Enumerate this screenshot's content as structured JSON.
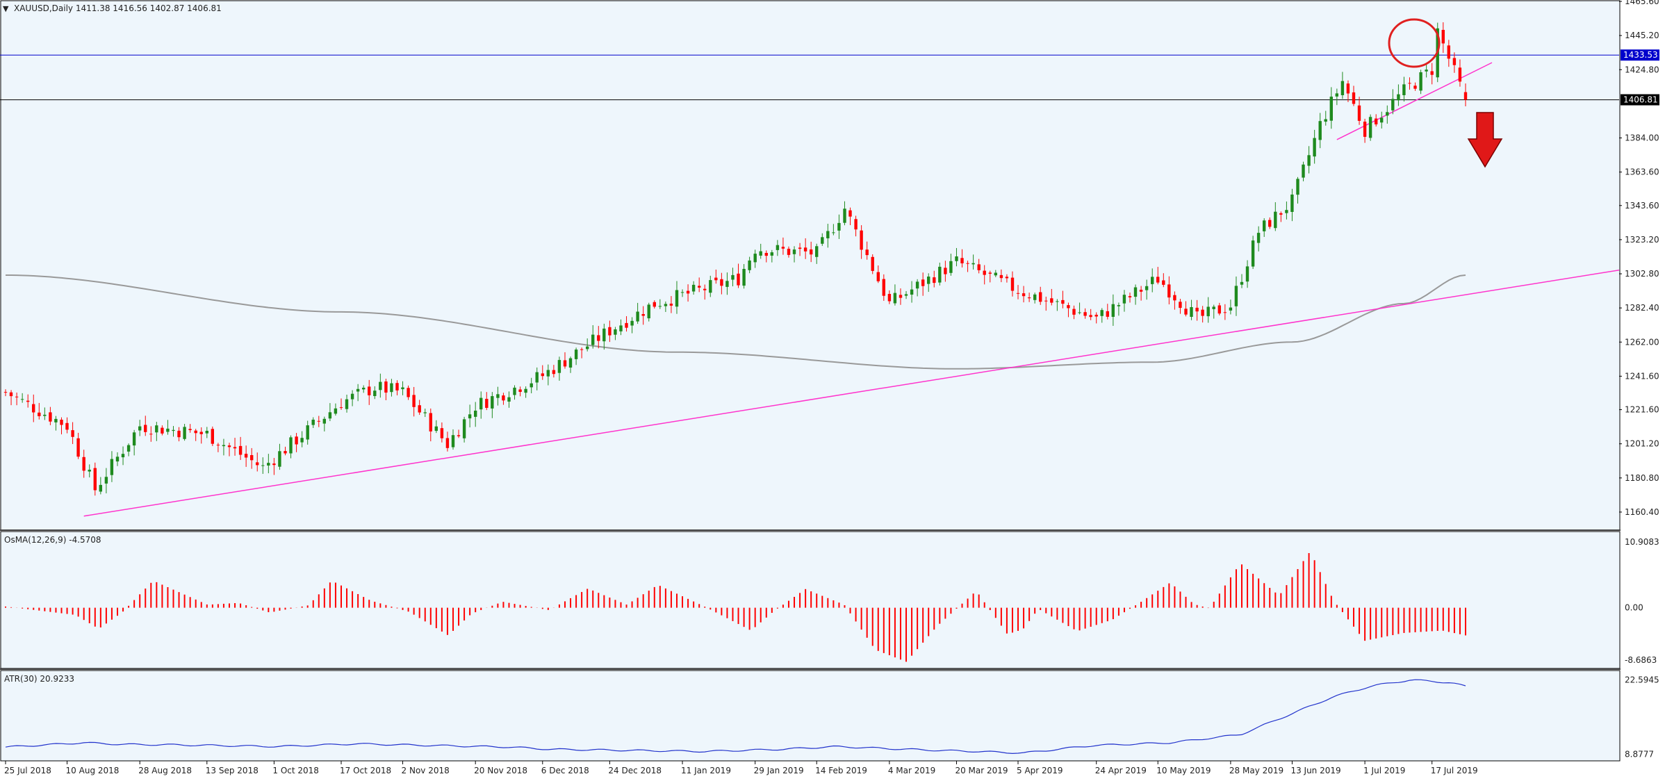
{
  "colors": {
    "background": "#eef6fc",
    "bull": "#1e8a1e",
    "bear": "#ff0000",
    "wick": "#555555",
    "trendline": "#ff33cc",
    "resistance": "#0000cc",
    "last_price_line": "#000000",
    "ma": "#999999",
    "osma": "#ff0000",
    "atr": "#2233cc",
    "axis_text": "#222222",
    "current_price_box": "#0000cc",
    "last_price_box": "#000000",
    "circle": "#e02020",
    "arrow": "#e01818"
  },
  "main": {
    "header": "XAUUSD,Daily  1411.38 1416.56 1402.87 1406.81",
    "y_ticks": [
      "1465.60",
      "1445.20",
      "1424.80",
      "1384.00",
      "1363.60",
      "1343.60",
      "1323.20",
      "1302.80",
      "1282.40",
      "1262.00",
      "1241.60",
      "1221.60",
      "1201.20",
      "1180.80",
      "1160.40"
    ],
    "price_badges": {
      "resistance": "1433.53",
      "last": "1406.81"
    }
  },
  "osma": {
    "header": "OsMA(12,26,9) -4.5708",
    "y_ticks": [
      "10.9083",
      "0.00",
      "-8.6863"
    ]
  },
  "atr": {
    "header": "ATR(30) 20.9233",
    "y_ticks": [
      "22.5945",
      "8.8777"
    ]
  },
  "x_ticks": [
    "25 Jul 2018",
    "10 Aug 2018",
    "28 Aug 2018",
    "13 Sep 2018",
    "1 Oct 2018",
    "17 Oct 2018",
    "2 Nov 2018",
    "20 Nov 2018",
    "6 Dec 2018",
    "24 Dec 2018",
    "11 Jan 2019",
    "29 Jan 2019",
    "14 Feb 2019",
    "4 Mar 2019",
    "20 Mar 2019",
    "5 Apr 2019",
    "24 Apr 2019",
    "10 May 2019",
    "28 May 2019",
    "13 Jun 2019",
    "1 Jul 2019",
    "17 Jul 2019"
  ],
  "chart_data": {
    "type": "candlestick",
    "symbol": "XAUUSD",
    "timeframe": "Daily",
    "last_ohlc": {
      "open": 1411.38,
      "high": 1416.56,
      "low": 1402.87,
      "close": 1406.81
    },
    "x_range": [
      "25 Jul 2018",
      "26 Jul 2019"
    ],
    "price_range": [
      1150,
      1465.6
    ],
    "approx_closes": [
      {
        "date": "25 Jul 2018",
        "close": 1232
      },
      {
        "date": "10 Aug 2018",
        "close": 1212
      },
      {
        "date": "16 Aug 2018",
        "close": 1174
      },
      {
        "date": "28 Aug 2018",
        "close": 1212
      },
      {
        "date": "13 Sep 2018",
        "close": 1207
      },
      {
        "date": "28 Sep 2018",
        "close": 1187
      },
      {
        "date": "17 Oct 2018",
        "close": 1226
      },
      {
        "date": "26 Oct 2018",
        "close": 1235
      },
      {
        "date": "2 Nov 2018",
        "close": 1232
      },
      {
        "date": "13 Nov 2018",
        "close": 1201
      },
      {
        "date": "20 Nov 2018",
        "close": 1224
      },
      {
        "date": "6 Dec 2018",
        "close": 1242
      },
      {
        "date": "24 Dec 2018",
        "close": 1269
      },
      {
        "date": "4 Jan 2019",
        "close": 1285
      },
      {
        "date": "11 Jan 2019",
        "close": 1290
      },
      {
        "date": "25 Jan 2019",
        "close": 1300
      },
      {
        "date": "29 Jan 2019",
        "close": 1318
      },
      {
        "date": "14 Feb 2019",
        "close": 1315
      },
      {
        "date": "20 Feb 2019",
        "close": 1342
      },
      {
        "date": "4 Mar 2019",
        "close": 1285
      },
      {
        "date": "20 Mar 2019",
        "close": 1310
      },
      {
        "date": "5 Apr 2019",
        "close": 1293
      },
      {
        "date": "24 Apr 2019",
        "close": 1276
      },
      {
        "date": "10 May 2019",
        "close": 1300
      },
      {
        "date": "20 May 2019",
        "close": 1276
      },
      {
        "date": "28 May 2019",
        "close": 1284
      },
      {
        "date": "4 Jun 2019",
        "close": 1328
      },
      {
        "date": "13 Jun 2019",
        "close": 1346
      },
      {
        "date": "20 Jun 2019",
        "close": 1392
      },
      {
        "date": "25 Jun 2019",
        "close": 1418
      },
      {
        "date": "1 Jul 2019",
        "close": 1389
      },
      {
        "date": "10 Jul 2019",
        "close": 1412
      },
      {
        "date": "17 Jul 2019",
        "close": 1425
      },
      {
        "date": "19 Jul 2019",
        "close": 1448
      },
      {
        "date": "26 Jul 2019",
        "close": 1406.81
      }
    ],
    "horizontal_lines": [
      {
        "name": "resistance",
        "value": 1433.53
      },
      {
        "name": "last",
        "value": 1406.81
      }
    ],
    "osma": {
      "name": "OsMA(12,26,9)",
      "last": -4.5708,
      "range": [
        -8.6863,
        10.9083
      ]
    },
    "atr": {
      "name": "ATR(30)",
      "last": 20.9233,
      "range": [
        8.8777,
        22.5945
      ]
    }
  }
}
